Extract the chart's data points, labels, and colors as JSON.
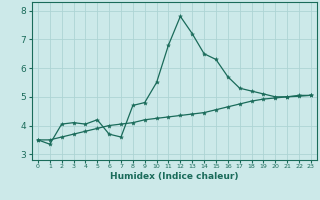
{
  "xlabel": "Humidex (Indice chaleur)",
  "ylabel": "",
  "xlim": [
    -0.5,
    23.5
  ],
  "ylim": [
    2.8,
    8.3
  ],
  "yticks": [
    3,
    4,
    5,
    6,
    7,
    8
  ],
  "xtick_labels": [
    "0",
    "1",
    "2",
    "3",
    "4",
    "5",
    "6",
    "7",
    "8",
    "9",
    "10",
    "11",
    "12",
    "13",
    "14",
    "15",
    "16",
    "17",
    "18",
    "19",
    "20",
    "21",
    "22",
    "23"
  ],
  "bg_color": "#cce9e9",
  "grid_color": "#add4d4",
  "line_color": "#1a6b5a",
  "line1_x": [
    0,
    1,
    2,
    3,
    4,
    5,
    6,
    7,
    8,
    9,
    10,
    11,
    12,
    13,
    14,
    15,
    16,
    17,
    18,
    19,
    20,
    21,
    22,
    23
  ],
  "line1_y": [
    3.5,
    3.35,
    4.05,
    4.1,
    4.05,
    4.2,
    3.7,
    3.6,
    4.7,
    4.8,
    5.5,
    6.8,
    7.8,
    7.2,
    6.5,
    6.3,
    5.7,
    5.3,
    5.2,
    5.1,
    5.0,
    5.0,
    5.05,
    5.05
  ],
  "line2_x": [
    0,
    1,
    2,
    3,
    4,
    5,
    6,
    7,
    8,
    9,
    10,
    11,
    12,
    13,
    14,
    15,
    16,
    17,
    18,
    19,
    20,
    21,
    22,
    23
  ],
  "line2_y": [
    3.5,
    3.5,
    3.6,
    3.7,
    3.8,
    3.9,
    4.0,
    4.05,
    4.1,
    4.2,
    4.25,
    4.3,
    4.35,
    4.4,
    4.45,
    4.55,
    4.65,
    4.75,
    4.85,
    4.92,
    4.96,
    5.0,
    5.02,
    5.05
  ]
}
